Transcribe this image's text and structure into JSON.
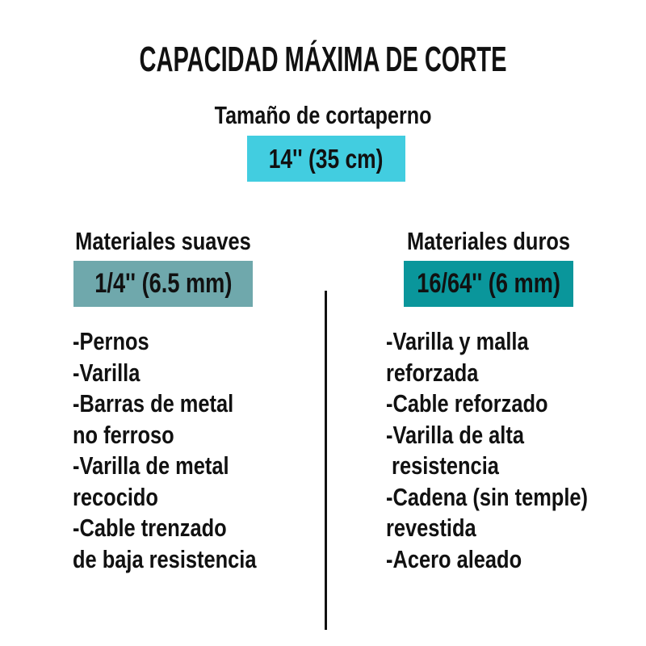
{
  "page": {
    "background": "#ffffff",
    "text_color": "#111111",
    "divider_color": "#111111"
  },
  "header": {
    "title": "CAPACIDAD MÁXIMA DE CORTE",
    "subtitle": "Tamaño de cortaperno",
    "size_badge": {
      "label": "14'' (35 cm)",
      "color": "#42CDE0"
    }
  },
  "columns": [
    {
      "heading": "Materiales suaves",
      "badge": {
        "label": "1/4'' (6.5 mm)",
        "color": "#6FA8AC"
      },
      "lines": [
        "-Pernos",
        "-Varilla",
        "-Barras de metal",
        "no ferroso",
        "-Varilla de metal",
        "recocido",
        "-Cable trenzado",
        "de baja resistencia"
      ]
    },
    {
      "heading": "Materiales duros",
      "badge": {
        "label": "16/64'' (6 mm)",
        "color": "#0A969B"
      },
      "lines": [
        "-Varilla y malla",
        "reforzada",
        "-Cable reforzado",
        "-Varilla de alta",
        " resistencia",
        "-Cadena (sin temple)",
        "revestida",
        "-Acero aleado"
      ]
    }
  ]
}
